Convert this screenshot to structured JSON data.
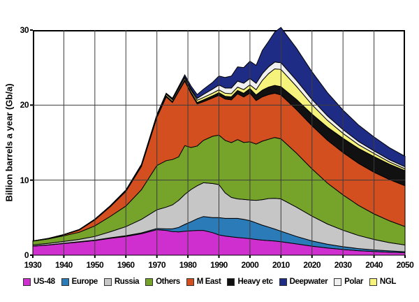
{
  "chart_data": {
    "type": "area",
    "stacked": true,
    "title": "",
    "xlabel": "",
    "ylabel": "Billion barrels a year (Gb/a)",
    "xlim": [
      1930,
      2050
    ],
    "ylim": [
      0,
      30
    ],
    "x_ticks": [
      1930,
      1940,
      1950,
      1960,
      1970,
      1980,
      1990,
      2000,
      2010,
      2020,
      2030,
      2040,
      2050
    ],
    "y_ticks": [
      0,
      10,
      20,
      30
    ],
    "grid": true,
    "gridline_color": "#3c3c3c",
    "outline_color": "#000000",
    "legend_position": "bottom",
    "years": [
      1930,
      1935,
      1940,
      1945,
      1950,
      1955,
      1960,
      1965,
      1970,
      1973,
      1975,
      1977,
      1979,
      1981,
      1983,
      1985,
      1988,
      1990,
      1992,
      1994,
      1996,
      1998,
      2000,
      2002,
      2004,
      2006,
      2008,
      2010,
      2015,
      2020,
      2025,
      2030,
      2035,
      2040,
      2045,
      2050
    ],
    "series": [
      {
        "name": "US-48",
        "color": "#CE2FCE",
        "values": [
          1.2,
          1.35,
          1.55,
          1.75,
          1.95,
          2.25,
          2.5,
          2.85,
          3.4,
          3.3,
          3.15,
          3.1,
          3.2,
          3.25,
          3.3,
          3.3,
          3.0,
          2.7,
          2.55,
          2.45,
          2.35,
          2.28,
          2.2,
          2.1,
          2.0,
          1.95,
          1.88,
          1.8,
          1.5,
          1.2,
          0.95,
          0.75,
          0.6,
          0.48,
          0.4,
          0.33
        ]
      },
      {
        "name": "Europe",
        "color": "#2B7BB9",
        "values": [
          0.02,
          0.02,
          0.03,
          0.04,
          0.05,
          0.07,
          0.1,
          0.12,
          0.15,
          0.2,
          0.35,
          0.6,
          0.9,
          1.2,
          1.55,
          1.85,
          2.0,
          2.3,
          2.35,
          2.45,
          2.55,
          2.5,
          2.4,
          2.2,
          2.0,
          1.8,
          1.6,
          1.4,
          1.0,
          0.7,
          0.5,
          0.38,
          0.28,
          0.22,
          0.17,
          0.13
        ]
      },
      {
        "name": "Russia",
        "color": "#C6C6C6",
        "values": [
          0.15,
          0.2,
          0.25,
          0.32,
          0.5,
          0.8,
          1.2,
          1.8,
          2.5,
          2.9,
          3.2,
          3.6,
          4.0,
          4.3,
          4.4,
          4.5,
          4.55,
          4.4,
          3.4,
          2.8,
          2.6,
          2.65,
          2.75,
          3.0,
          3.4,
          3.8,
          4.1,
          4.3,
          3.9,
          3.3,
          2.7,
          2.2,
          1.75,
          1.4,
          1.1,
          0.9
        ]
      },
      {
        "name": "Others",
        "color": "#76A42A",
        "values": [
          0.5,
          0.6,
          0.75,
          0.95,
          1.4,
          2.05,
          2.75,
          3.95,
          5.9,
          6.2,
          6.05,
          5.8,
          6.5,
          5.6,
          5.3,
          5.65,
          6.3,
          6.6,
          7.0,
          7.3,
          7.9,
          7.6,
          7.75,
          7.5,
          7.8,
          7.9,
          8.1,
          8.0,
          7.2,
          6.3,
          5.45,
          4.7,
          4.0,
          3.4,
          2.9,
          2.45
        ]
      },
      {
        "name": "M East",
        "color": "#D34F20",
        "values": [
          0.0,
          0.03,
          0.12,
          0.3,
          0.8,
          1.3,
          1.95,
          3.1,
          6.4,
          8.5,
          7.6,
          8.7,
          8.6,
          7.2,
          5.6,
          5.15,
          5.1,
          5.3,
          5.5,
          5.7,
          6.1,
          6.05,
          6.5,
          5.8,
          5.9,
          5.95,
          5.9,
          5.85,
          5.8,
          5.75,
          5.7,
          5.65,
          5.6,
          5.55,
          5.5,
          5.45
        ]
      },
      {
        "name": "Heavy etc",
        "color": "#111111",
        "values": [
          0.0,
          0.0,
          0.0,
          0.01,
          0.02,
          0.03,
          0.05,
          0.08,
          0.1,
          0.12,
          0.13,
          0.15,
          0.17,
          0.18,
          0.2,
          0.25,
          0.3,
          0.35,
          0.38,
          0.4,
          0.45,
          0.5,
          0.6,
          0.75,
          0.9,
          1.0,
          1.05,
          1.1,
          1.35,
          1.55,
          1.75,
          1.9,
          2.0,
          2.1,
          2.05,
          2.0
        ]
      },
      {
        "name": "NGL",
        "color": "#F5F37C",
        "values": [
          0.03,
          0.04,
          0.05,
          0.06,
          0.08,
          0.1,
          0.12,
          0.15,
          0.2,
          0.22,
          0.23,
          0.25,
          0.27,
          0.28,
          0.3,
          0.32,
          0.35,
          0.38,
          0.4,
          0.42,
          0.45,
          0.48,
          0.5,
          0.7,
          1.3,
          1.8,
          2.2,
          2.3,
          1.75,
          1.25,
          0.9,
          0.65,
          0.5,
          0.4,
          0.3,
          0.25
        ]
      },
      {
        "name": "Polar",
        "color": "#EFEFEF",
        "values": [
          0.0,
          0.0,
          0.0,
          0.0,
          0.0,
          0.0,
          0.02,
          0.03,
          0.05,
          0.05,
          0.06,
          0.08,
          0.1,
          0.15,
          0.25,
          0.4,
          0.55,
          0.65,
          0.7,
          0.75,
          0.8,
          0.85,
          0.85,
          0.85,
          0.9,
          0.9,
          0.9,
          0.9,
          0.8,
          0.7,
          0.6,
          0.5,
          0.42,
          0.35,
          0.3,
          0.27
        ]
      },
      {
        "name": "Deepwater",
        "color": "#1E2C86",
        "values": [
          0.0,
          0.0,
          0.0,
          0.0,
          0.0,
          0.0,
          0.0,
          0.02,
          0.05,
          0.1,
          0.15,
          0.2,
          0.3,
          0.4,
          0.5,
          0.7,
          0.9,
          1.2,
          1.4,
          1.6,
          1.9,
          2.1,
          2.3,
          2.4,
          3.1,
          3.4,
          4.0,
          4.7,
          4.3,
          3.7,
          3.1,
          2.6,
          2.2,
          1.85,
          1.6,
          1.4
        ]
      }
    ],
    "legend": [
      {
        "label": "US-48",
        "color": "#CE2FCE"
      },
      {
        "label": "Europe",
        "color": "#2B7BB9"
      },
      {
        "label": "Russia",
        "color": "#C6C6C6"
      },
      {
        "label": "Others",
        "color": "#76A42A"
      },
      {
        "label": "M East",
        "color": "#D34F20"
      },
      {
        "label": "Heavy etc",
        "color": "#111111"
      },
      {
        "label": "Deepwater",
        "color": "#1E2C86"
      },
      {
        "label": "Polar",
        "color": "#EFEFEF"
      },
      {
        "label": "NGL",
        "color": "#F5F37C"
      }
    ]
  }
}
